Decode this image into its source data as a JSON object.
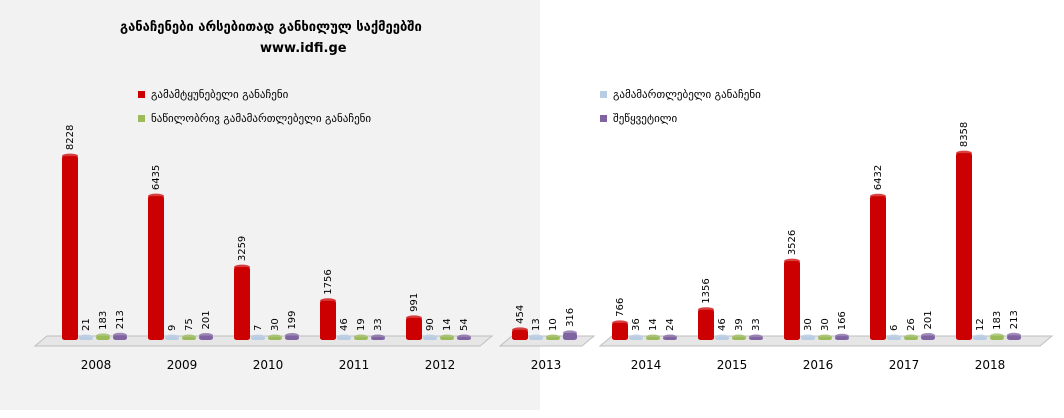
{
  "chart_data": {
    "type": "bar",
    "title": "განაჩენები არსებითად განხილულ საქმეებში",
    "subtitle": "www.idfi.ge",
    "xlabel": "",
    "ylabel": "",
    "legend_placement": "top-left",
    "grid": false,
    "ylim": [
      0,
      8500
    ],
    "categories": [
      "2008",
      "2009",
      "2010",
      "2011",
      "2012",
      "2013",
      "2014",
      "2015",
      "2016",
      "2017",
      "2018"
    ],
    "series": [
      {
        "name": "გამამტყუნებელი განაჩენი",
        "color": "#cc0000",
        "values": [
          8228,
          6435,
          3259,
          1756,
          991,
          454,
          766,
          1356,
          3526,
          6432,
          8358
        ]
      },
      {
        "name": "გამამართლებელი განაჩენი",
        "color": "#b8cce4",
        "values": [
          21,
          9,
          7,
          46,
          90,
          13,
          36,
          46,
          30,
          6,
          12
        ]
      },
      {
        "name": "ნაწილობრივ გამამართლებელი განაჩენი",
        "color": "#9bbb59",
        "values": [
          183,
          75,
          30,
          19,
          14,
          10,
          14,
          39,
          30,
          26,
          183
        ]
      },
      {
        "name": "შეწყვეტილი",
        "color": "#8064a2",
        "values": [
          213,
          201,
          199,
          33,
          54,
          316,
          24,
          33,
          166,
          201,
          213
        ]
      }
    ],
    "data_labels": [
      [
        "8228",
        "6435",
        "3259",
        "1756",
        "991",
        "454",
        "766",
        "1356",
        "3526",
        "6432",
        "8358"
      ],
      [
        "21",
        "9",
        "7",
        "46",
        "90",
        "13",
        "36",
        "46",
        "30",
        "6",
        "12"
      ],
      [
        "183",
        "75",
        "30",
        "19",
        "14",
        "10",
        "14",
        "39",
        "30",
        "26",
        "183"
      ],
      [
        "213",
        "201",
        "199",
        "33",
        "54",
        "316",
        "24",
        "33",
        "166",
        "201",
        "213"
      ]
    ]
  }
}
